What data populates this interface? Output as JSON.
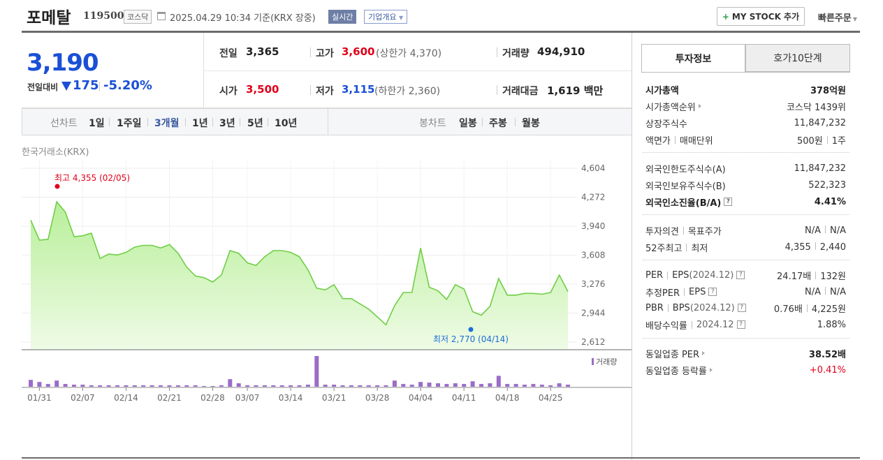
{
  "header": {
    "name": "포메탈",
    "code": "119500",
    "market": "코스닥",
    "datetime": "2025.04.29 10:34",
    "basis": "기준(KRX 장중)",
    "live_badge": "실시간",
    "overview_btn": "기업개요",
    "mystock_btn": "MY STOCK 추가",
    "quick_order": "빠른주문"
  },
  "quote": {
    "price": "3,190",
    "prev_label": "전일대비",
    "change": "175",
    "change_rate": "-5.20%",
    "prev_close_label": "전일",
    "prev_close": "3,365",
    "high_label": "고가",
    "high": "3,600",
    "upper_limit_label": "(상한가",
    "upper_limit": "4,370",
    "upper_limit_close": ")",
    "volume_label": "거래량",
    "volume": "494,910",
    "open_label": "시가",
    "open": "3,500",
    "low_label": "저가",
    "low": "3,115",
    "lower_limit_label": "(하한가",
    "lower_limit": "2,360",
    "lower_limit_close": ")",
    "amount_label": "거래대금",
    "amount": "1,619",
    "amount_unit": "백만"
  },
  "toolbar": {
    "line_label": "선차트",
    "periods": [
      "1일",
      "1주일",
      "3개월",
      "1년",
      "3년",
      "5년",
      "10년"
    ],
    "active_period": "3개월",
    "candle_label": "봉차트",
    "candles": [
      "일봉",
      "주봉",
      "월봉"
    ]
  },
  "chart_source": "한국거래소(KRX)",
  "chart_data": {
    "type": "area",
    "yticks": [
      "4,604",
      "4,272",
      "3,940",
      "3,608",
      "3,276",
      "2,944",
      "2,612"
    ],
    "ylim": [
      2612,
      4604
    ],
    "xticks": [
      "01/31",
      "02/07",
      "02/14",
      "02/21",
      "02/28",
      "03/07",
      "03/14",
      "03/21",
      "03/28",
      "04/04",
      "04/11",
      "04/18",
      "04/25"
    ],
    "high_annotation": "최고 4,355 (02/05)",
    "low_annotation": "최저 2,770 (04/14)",
    "volume_label": "거래량",
    "series": [
      {
        "values": [
          4010,
          3780,
          3790,
          4220,
          4100,
          3820,
          3830,
          3860,
          3570,
          3620,
          3610,
          3640,
          3700,
          3720,
          3720,
          3690,
          3730,
          3630,
          3470,
          3370,
          3350,
          3300,
          3380,
          3660,
          3630,
          3520,
          3490,
          3590,
          3660,
          3660,
          3640,
          3590,
          3440,
          3230,
          3210,
          3270,
          3110,
          3110,
          3050,
          2990,
          2900,
          2810,
          3030,
          3180,
          3180,
          3690,
          3240,
          3200,
          3100,
          3270,
          3220,
          2960,
          2920,
          3020,
          3340,
          3150,
          3150,
          3170,
          3170,
          3160,
          3180,
          3380,
          3190
        ]
      }
    ],
    "volumes": [
      10,
      7,
      4,
      9,
      4,
      3,
      3,
      2,
      2,
      2,
      2,
      2,
      2,
      2,
      2,
      2,
      2,
      2,
      2,
      2,
      1,
      1,
      2,
      11,
      5,
      2,
      2,
      2,
      2,
      2,
      2,
      2,
      3,
      45,
      3,
      3,
      2,
      2,
      2,
      2,
      2,
      2,
      9,
      4,
      3,
      7,
      6,
      5,
      4,
      5,
      4,
      8,
      4,
      5,
      16,
      4,
      4,
      3,
      4,
      3,
      2,
      5,
      3
    ]
  },
  "panel": {
    "tab_info": "투자정보",
    "tab_hoga": "호가10단계",
    "market_cap_label": "시가총액",
    "market_cap": "378억원",
    "cap_rank_label": "시가총액순위",
    "cap_rank": "코스닥 1439위",
    "shares_label": "상장주식수",
    "shares": "11,847,232",
    "par_label": "액면가",
    "unit_label": "매매단위",
    "par": "500원",
    "unit": "1주",
    "foreign_limit_label": "외국인한도주식수(A)",
    "foreign_limit": "11,847,232",
    "foreign_hold_label": "외국인보유주식수(B)",
    "foreign_hold": "522,323",
    "foreign_rate_label": "외국인소진율(B/A)",
    "foreign_rate": "4.41%",
    "opinion_label": "투자의견",
    "target_label": "목표주가",
    "opinion": "N/A",
    "target": "N/A",
    "w52_high_label": "52주최고",
    "w52_low_label": "최저",
    "w52_high": "4,355",
    "w52_low": "2,440",
    "per_label": "PER",
    "eps_label": "EPS",
    "eps_year": "(2024.12)",
    "per": "24.17배",
    "eps": "132원",
    "est_per_label": "추정PER",
    "est_eps_label": "EPS",
    "est_per": "N/A",
    "est_eps": "N/A",
    "pbr_label": "PBR",
    "bps_label": "BPS",
    "bps_year": "(2024.12)",
    "pbr": "0.76배",
    "bps": "4,225원",
    "div_label": "배당수익률",
    "div_year": "2024.12",
    "div": "1.88%",
    "sector_per_label": "동일업종 PER",
    "sector_per": "38.52배",
    "sector_change_label": "동일업종 등락률",
    "sector_change": "+0.41%"
  }
}
